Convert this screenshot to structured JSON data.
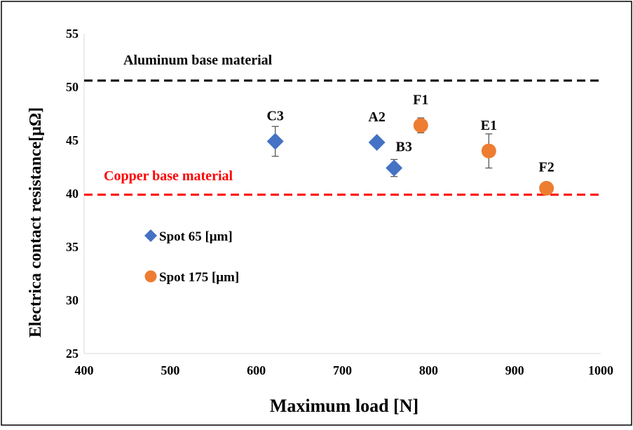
{
  "chart_data": {
    "type": "scatter",
    "xlabel": "Maximum load [N]",
    "ylabel": "Electrica contact resistance[μΩ]",
    "xlim": [
      400,
      1000
    ],
    "ylim": [
      25,
      55
    ],
    "x_ticks": [
      400,
      500,
      600,
      700,
      800,
      900,
      1000
    ],
    "y_ticks": [
      25,
      30,
      35,
      40,
      45,
      50,
      55
    ],
    "grid": false,
    "legend_position": "left",
    "reference_lines": [
      {
        "label": "Aluminum base material",
        "y": 50.6,
        "x_start": 400,
        "x_end": 1000,
        "color": "#000000",
        "style": "dashed"
      },
      {
        "label": "Copper base material",
        "y": 39.9,
        "x_start": 400,
        "x_end": 1000,
        "color": "#ff0000",
        "style": "dashed"
      }
    ],
    "series": [
      {
        "name": "Spot 65 [μm]",
        "marker": "diamond",
        "color": "#4472c4",
        "points": [
          {
            "label": "C3",
            "x": 622,
            "y": 44.9,
            "err": 1.4
          },
          {
            "label": "A2",
            "x": 740,
            "y": 44.8,
            "err": 0.0
          },
          {
            "label": "B3",
            "x": 760,
            "y": 42.4,
            "err": 0.8
          }
        ]
      },
      {
        "name": "Spot 175 [μm]",
        "marker": "circle",
        "color": "#ed7d31",
        "points": [
          {
            "label": "F1",
            "x": 791,
            "y": 46.4,
            "err": 0.7
          },
          {
            "label": "E1",
            "x": 870,
            "y": 44.0,
            "err": 1.6
          },
          {
            "label": "F2",
            "x": 937,
            "y": 40.5,
            "err": 0.0
          }
        ]
      }
    ]
  }
}
